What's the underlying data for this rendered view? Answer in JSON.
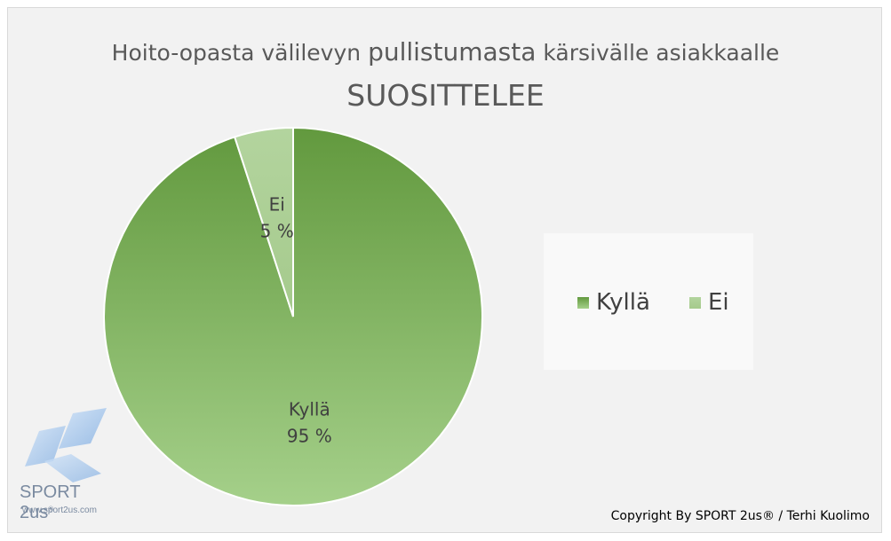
{
  "title_part1": "Hoito-opasta välilevyn ",
  "title_part2": "pullistumasta",
  "title_part3": " kärsivälle asiakkaalle",
  "subtitle": "SUOSITTELEE",
  "copyright": "Copyright By SPORT 2us® / Terhi Kuolimo",
  "logo": {
    "name": "SPORT 2us",
    "reg": "®",
    "url": "www.sport2us.com"
  },
  "colors": {
    "kylla": "#8ec06c",
    "ei": "#a9d18e",
    "background": "#f2f2f2"
  },
  "chart_data": {
    "type": "pie",
    "title": "Hoito-opasta välilevyn pullistumasta kärsivälle asiakkaalle",
    "subtitle": "SUOSITTELEE",
    "categories": [
      "Kyllä",
      "Ei"
    ],
    "values": [
      95,
      5
    ],
    "data_labels": [
      "95 %",
      "5 %"
    ],
    "legend": [
      "Kyllä",
      "Ei"
    ],
    "legend_position": "right"
  }
}
